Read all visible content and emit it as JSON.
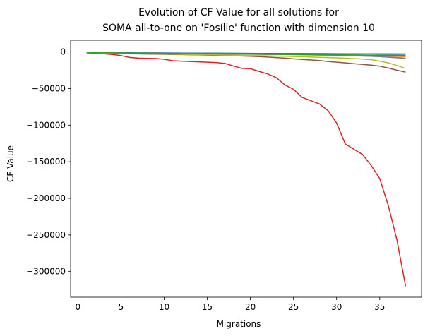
{
  "chart_data": {
    "type": "line",
    "title": [
      "Evolution of CF Value for all solutions for",
      "SOMA all-to-one on 'Fosílie' function with dimension 10"
    ],
    "xlabel": "Migrations",
    "ylabel": "CF Value",
    "xlim": [
      -0.85,
      39.85
    ],
    "ylim": [
      -335000,
      16000
    ],
    "xticks": [
      0,
      5,
      10,
      15,
      20,
      25,
      30,
      35
    ],
    "yticks": [
      0,
      -50000,
      -100000,
      -150000,
      -200000,
      -250000,
      -300000
    ],
    "ytick_labels": [
      "0",
      "−50000",
      "−100000",
      "−150000",
      "−200000",
      "−250000",
      "−300000"
    ],
    "grid": false,
    "x": [
      1,
      2,
      3,
      4,
      5,
      6,
      7,
      8,
      9,
      10,
      11,
      12,
      13,
      14,
      15,
      16,
      17,
      18,
      19,
      20,
      21,
      22,
      23,
      24,
      25,
      26,
      27,
      28,
      29,
      30,
      31,
      32,
      33,
      34,
      35,
      36,
      37,
      38
    ],
    "series": [
      {
        "color": "#1f77b4",
        "values": [
          -1200,
          -1300,
          -1400,
          -1500,
          -1600,
          -1700,
          -1800,
          -1900,
          -2000,
          -2100,
          -2200,
          -2300,
          -2400,
          -2500,
          -2600,
          -2700,
          -2800,
          -2900,
          -3000,
          -3100,
          -3200,
          -3300,
          -3400,
          -3500,
          -3600,
          -3700,
          -3800,
          -3900,
          -4000,
          -4100,
          -4200,
          -4300,
          -4400,
          -4500,
          -4600,
          -4700,
          -4800,
          -4900
        ]
      },
      {
        "color": "#ff7f0e",
        "values": [
          -1200,
          -1300,
          -1400,
          -1500,
          -1700,
          -1800,
          -1900,
          -2000,
          -2100,
          -2200,
          -2300,
          -2400,
          -2500,
          -2600,
          -2700,
          -2800,
          -2900,
          -3000,
          -3100,
          -3200,
          -3300,
          -3400,
          -3500,
          -3600,
          -3700,
          -3900,
          -4000,
          -4100,
          -4300,
          -4500,
          -4700,
          -4900,
          -5100,
          -5300,
          -5500,
          -5800,
          -6100,
          -6500
        ]
      },
      {
        "color": "#2ca02c",
        "values": [
          -1000,
          -1050,
          -1100,
          -1150,
          -1200,
          -1250,
          -1300,
          -1350,
          -1400,
          -1450,
          -1500,
          -1550,
          -1600,
          -1650,
          -1700,
          -1750,
          -1800,
          -1850,
          -1900,
          -1950,
          -2000,
          -2050,
          -2100,
          -2150,
          -2200,
          -2250,
          -2300,
          -2350,
          -2400,
          -2450,
          -2500,
          -2550,
          -2600,
          -2650,
          -2700,
          -2750,
          -2800,
          -2850
        ]
      },
      {
        "color": "#d62728",
        "values": [
          -1200,
          -1800,
          -2500,
          -3500,
          -5000,
          -7500,
          -8500,
          -8800,
          -9000,
          -10000,
          -12000,
          -12500,
          -13000,
          -13500,
          -14000,
          -14500,
          -15500,
          -19000,
          -22500,
          -22800,
          -26500,
          -30000,
          -35000,
          -45000,
          -51000,
          -62000,
          -66500,
          -71000,
          -80000,
          -97000,
          -125500,
          -133000,
          -140000,
          -155000,
          -173000,
          -210000,
          -257000,
          -320000
        ]
      },
      {
        "color": "#9467bd",
        "values": [
          -1100,
          -1200,
          -1300,
          -1400,
          -1500,
          -1600,
          -1700,
          -1800,
          -1900,
          -2000,
          -2100,
          -2200,
          -2300,
          -2400,
          -2500,
          -2600,
          -2700,
          -2800,
          -2900,
          -3000,
          -3100,
          -3200,
          -3300,
          -3400,
          -3500,
          -3600,
          -3700,
          -3800,
          -3900,
          -4000,
          -4100,
          -4200,
          -4300,
          -4400,
          -4500,
          -4600,
          -4700,
          -4800
        ]
      },
      {
        "color": "#8c564b",
        "values": [
          -1300,
          -1500,
          -1800,
          -2000,
          -2200,
          -2500,
          -2700,
          -2900,
          -3100,
          -3300,
          -3500,
          -3700,
          -3900,
          -4100,
          -4300,
          -4600,
          -4900,
          -5200,
          -5600,
          -6000,
          -6500,
          -7000,
          -7700,
          -8500,
          -9500,
          -10300,
          -11000,
          -11800,
          -13000,
          -14000,
          -15000,
          -16000,
          -17000,
          -18000,
          -19500,
          -22000,
          -25000,
          -27500
        ]
      },
      {
        "color": "#e377c2",
        "values": [
          -1100,
          -1200,
          -1300,
          -1400,
          -1500,
          -1600,
          -1700,
          -1800,
          -1900,
          -2000,
          -2100,
          -2200,
          -2300,
          -2400,
          -2500,
          -2600,
          -2700,
          -2800,
          -2900,
          -3000,
          -3100,
          -3200,
          -3400,
          -3600,
          -3800,
          -4000,
          -4200,
          -4400,
          -4600,
          -4800,
          -5000,
          -5300,
          -5600,
          -6000,
          -6500,
          -7000,
          -7600,
          -8500
        ]
      },
      {
        "color": "#7f7f7f",
        "values": [
          -1100,
          -1200,
          -1300,
          -1400,
          -1500,
          -1600,
          -1700,
          -1800,
          -1900,
          -2000,
          -2100,
          -2200,
          -2300,
          -2400,
          -2500,
          -2600,
          -2700,
          -2800,
          -2900,
          -3000,
          -3100,
          -3200,
          -3300,
          -3400,
          -3500,
          -3700,
          -3900,
          -4100,
          -4300,
          -4600,
          -4900,
          -5200,
          -5600,
          -6000,
          -6500,
          -7200,
          -8000,
          -9000
        ]
      },
      {
        "color": "#bcbd22",
        "values": [
          -1200,
          -1300,
          -1500,
          -1700,
          -1900,
          -2100,
          -2300,
          -2500,
          -2700,
          -2900,
          -3100,
          -3300,
          -3500,
          -3700,
          -3900,
          -4100,
          -4300,
          -4500,
          -4700,
          -4900,
          -5100,
          -5400,
          -5700,
          -6000,
          -6300,
          -6600,
          -6900,
          -7300,
          -7700,
          -8100,
          -8600,
          -9100,
          -9700,
          -10500,
          -12500,
          -15000,
          -18500,
          -22500
        ]
      },
      {
        "color": "#17becf",
        "values": [
          -1100,
          -1150,
          -1200,
          -1250,
          -1300,
          -1350,
          -1400,
          -1450,
          -1500,
          -1550,
          -1600,
          -1650,
          -1700,
          -1750,
          -1800,
          -1850,
          -1900,
          -1950,
          -2000,
          -2050,
          -2100,
          -2150,
          -2200,
          -2250,
          -2300,
          -2350,
          -2400,
          -2450,
          -2500,
          -2550,
          -2600,
          -2650,
          -2700,
          -2750,
          -2800,
          -2850,
          -2900,
          -2950
        ]
      },
      {
        "color": "#1f77b4",
        "values": [
          -1050,
          -1100,
          -1150,
          -1200,
          -1250,
          -1300,
          -1350,
          -1400,
          -1450,
          -1500,
          -1550,
          -1600,
          -1650,
          -1700,
          -1750,
          -1800,
          -1850,
          -1900,
          -1950,
          -2000,
          -2050,
          -2100,
          -2150,
          -2200,
          -2250,
          -2300,
          -2350,
          -2400,
          -2450,
          -2500,
          -2550,
          -2600,
          -2650,
          -2700,
          -2750,
          -2800,
          -2850,
          -2900
        ]
      },
      {
        "color": "#ff7f0e",
        "values": [
          -1100,
          -1200,
          -1300,
          -1400,
          -1500,
          -1600,
          -1700,
          -1800,
          -1900,
          -2000,
          -2100,
          -2200,
          -2300,
          -2400,
          -2500,
          -2600,
          -2700,
          -2800,
          -2900,
          -3000,
          -3100,
          -3200,
          -3300,
          -3400,
          -3500,
          -3600,
          -3700,
          -3800,
          -3900,
          -4000,
          -4200,
          -4400,
          -4600,
          -4800,
          -5000,
          -5200,
          -5400,
          -5600
        ]
      },
      {
        "color": "#2ca02c",
        "values": [
          -1100,
          -1200,
          -1300,
          -1400,
          -1500,
          -1600,
          -1700,
          -1800,
          -1900,
          -2000,
          -2100,
          -2200,
          -2300,
          -2400,
          -2500,
          -2600,
          -2700,
          -2800,
          -2900,
          -3000,
          -3100,
          -3200,
          -3300,
          -3400,
          -3500,
          -3600,
          -3700,
          -3800,
          -3900,
          -4000,
          -4100,
          -4200,
          -4300,
          -4400,
          -4500,
          -4600,
          -4700,
          -4800
        ]
      }
    ]
  }
}
